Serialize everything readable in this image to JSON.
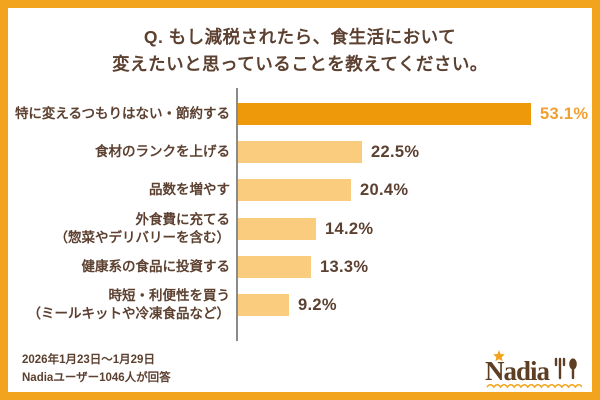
{
  "title": {
    "line1": "Q. もし減税されたら、食生活において",
    "line2": "変えたいと思っていることを教えてください。"
  },
  "chart_data": {
    "type": "bar",
    "orientation": "horizontal",
    "title": "Q. もし減税されたら、食生活において変えたいと思っていることを教えてください。",
    "categories": [
      "特に変えるつもりはない・節約する",
      "食材のランクを上げる",
      "品数を増やす",
      "外食費に充てる\n（惣菜やデリバリーを含む）",
      "健康系の食品に投資する",
      "時短・利便性を買う\n（ミールキットや冷凍食品など）"
    ],
    "values": [
      53.1,
      22.5,
      20.4,
      14.2,
      13.3,
      9.2
    ],
    "value_labels": [
      "53.1%",
      "22.5%",
      "20.4%",
      "14.2%",
      "13.3%",
      "9.2%"
    ],
    "xlim": [
      0,
      55
    ],
    "grid": false,
    "legend": false,
    "highlight_index": 0
  },
  "footer": {
    "period": "2026年1月23日～1月29日",
    "respondents": "Nadiaユーザー1046人が回答"
  },
  "logo": {
    "text": "Nadia"
  },
  "colors": {
    "border": "#F2A41E",
    "bar_highlight": "#EE990A",
    "bar_normal": "#FACC7E",
    "value_highlight": "#F0A02D",
    "text_brown": "#5C4030",
    "axis_gray": "#8A8A8A",
    "logo_brown": "#5F3F23"
  }
}
